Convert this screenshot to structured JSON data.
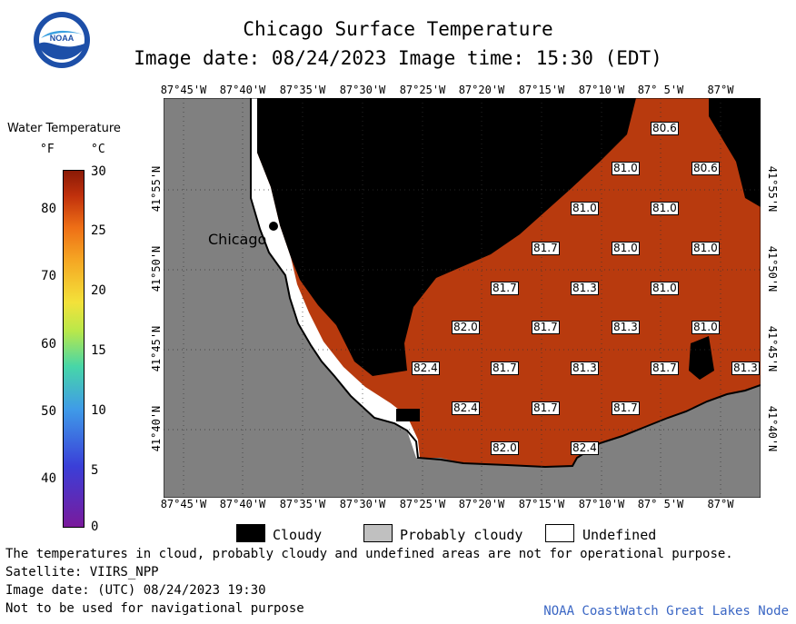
{
  "title": "Chicago Surface Temperature",
  "image_date_line": "Image date: 08/24/2023    Image time: 15:30 (EDT)",
  "logo": "NOAA",
  "legend": {
    "title": "Water Temperature",
    "unit_f": "°F",
    "unit_c": "°C",
    "f_ticks": [
      "80",
      "70",
      "60",
      "50",
      "40"
    ],
    "c_ticks": [
      "30",
      "25",
      "20",
      "15",
      "10",
      "5",
      "0"
    ]
  },
  "longitudes": [
    "87°45'W",
    "87°40'W",
    "87°35'W",
    "87°30'W",
    "87°25'W",
    "87°20'W",
    "87°15'W",
    "87°10'W",
    "87° 5'W",
    "87°W"
  ],
  "latitudes": [
    "41°55'N",
    "41°50'N",
    "41°45'N",
    "41°40'N"
  ],
  "city": "Chicago",
  "readings": [
    "80.6",
    "81.0",
    "80.6",
    "81.0",
    "81.0",
    "81.7",
    "81.0",
    "81.0",
    "81.7",
    "81.3",
    "81.0",
    "82.0",
    "81.7",
    "81.3",
    "81.0",
    "82.4",
    "81.7",
    "81.3",
    "81.7",
    "81.3",
    "82.4",
    "81.7",
    "81.7",
    "82.0",
    "82.4"
  ],
  "key": {
    "cloudy": "Cloudy",
    "probably_cloudy": "Probably cloudy",
    "undefined": "Undefined"
  },
  "notes": {
    "line1": "The temperatures in cloud, probably cloudy and undefined areas are not for operational purpose.",
    "line2": "Satellite: VIIRS_NPP",
    "line3": "Image date: (UTC) 08/24/2023  19:30",
    "line4": "Not to be used for navigational purpose"
  },
  "credit": "NOAA CoastWatch Great Lakes Node",
  "colors": {
    "water": "#b83a0e",
    "land": "#808080",
    "cloud": "#000000",
    "probably_cloudy": "#c0c0c0",
    "undefined": "#ffffff"
  }
}
